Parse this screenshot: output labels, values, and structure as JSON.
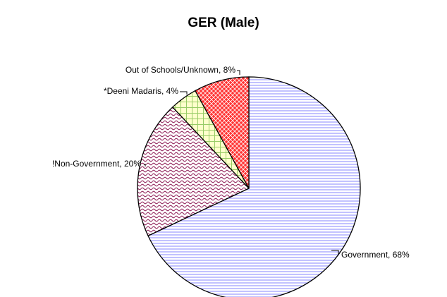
{
  "chart_data": {
    "type": "pie",
    "title": "GER (Male)",
    "values": [
      68,
      20,
      4,
      8
    ],
    "value_labels": [
      "Government, 68%",
      "!Non-Government, 20%",
      "*Deeni Madaris, 4%",
      "Out of Schools/Unknown, 8%"
    ],
    "colors": [
      "#9999ff",
      "#993366",
      "#ffffcc",
      "#ff3333"
    ]
  }
}
